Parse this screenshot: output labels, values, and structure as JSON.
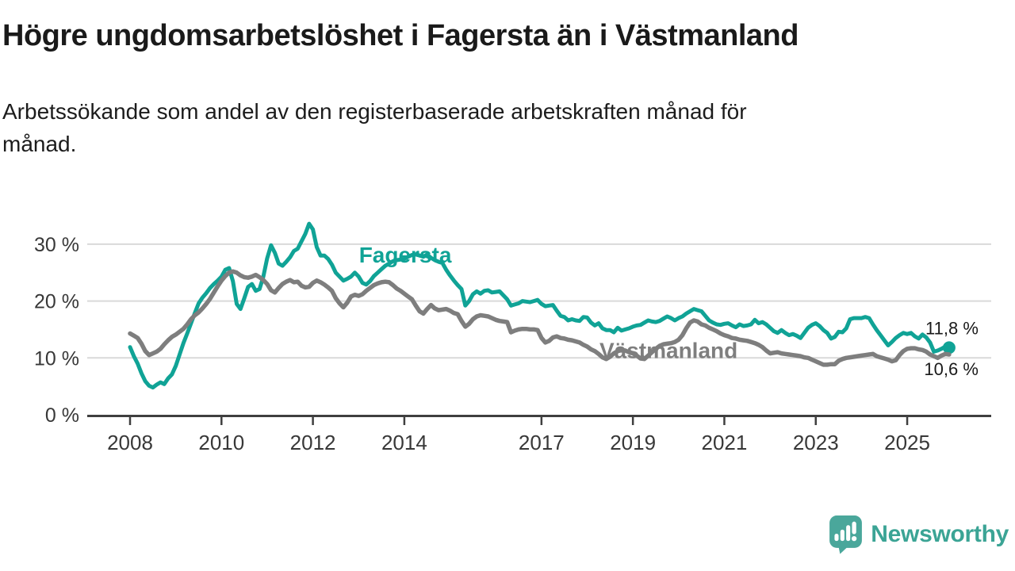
{
  "title": "Högre ungdomsarbetslöshet i Fagersta än i Västmanland",
  "subtitle": {
    "line1": "Arbetssökande som andel av den registerbaserade arbetskraften månad för",
    "line2": "månad."
  },
  "branding": {
    "logo_text": "Newsworthy",
    "logo_icon": "newsworthy-speech-bubble-bar-chart-icon",
    "logo_color": "#4aa79b"
  },
  "colors": {
    "fagersta_line": "#10a396",
    "vastmanland_line": "#7e7e7e",
    "axis": "#3f3f3f",
    "grid": "#d9d9d9",
    "tick_text": "#383838",
    "annotation_text": "#1a1a1a"
  },
  "chart_data": {
    "type": "line",
    "title": "Högre ungdomsarbetslöshet i Fagersta än i Västmanland",
    "subtitle": "Arbetssökande som andel av den registerbaserade arbetskraften månad för månad.",
    "x_unit": "year-month",
    "x_start_year": 2008,
    "x_step_months": 1,
    "x_ticks": [
      "2008",
      "2010",
      "2012",
      "2014",
      "2017",
      "2019",
      "2021",
      "2023",
      "2025"
    ],
    "x_tick_years": [
      2008,
      2010,
      2012,
      2014,
      2017,
      2019,
      2021,
      2023,
      2025
    ],
    "xlim": [
      2007.1,
      2026.85
    ],
    "ylim": [
      0,
      35
    ],
    "y_ticks": [
      {
        "value": 0,
        "label": "0 %"
      },
      {
        "value": 10,
        "label": "10 %"
      },
      {
        "value": 20,
        "label": "20 %"
      },
      {
        "value": 30,
        "label": "30 %"
      }
    ],
    "grid": true,
    "legend_position": "inline-labels",
    "series": [
      {
        "name": "Fagersta",
        "color": "#10a396",
        "stroke_width": 5,
        "label_pos": {
          "year": 2014.02,
          "value": 28.0
        },
        "end_dot": true,
        "end_label": "11,8 %",
        "end_label_dy": -17,
        "end_value": 11.8,
        "values": [
          11.9,
          10.3,
          9.0,
          7.3,
          5.9,
          5.1,
          4.8,
          5.3,
          5.7,
          5.4,
          6.4,
          7.1,
          8.6,
          10.6,
          12.6,
          14.3,
          16.1,
          17.9,
          19.6,
          20.6,
          21.4,
          22.3,
          23.0,
          23.6,
          24.3,
          25.5,
          25.8,
          23.5,
          19.5,
          18.6,
          20.5,
          22.5,
          23.0,
          21.8,
          22.1,
          24.3,
          27.5,
          29.8,
          28.5,
          26.6,
          26.2,
          26.9,
          27.7,
          28.8,
          29.2,
          30.5,
          31.8,
          33.6,
          32.6,
          29.5,
          28.0,
          28.0,
          27.4,
          26.4,
          25.0,
          24.3,
          23.6,
          23.9,
          24.3,
          25.0,
          24.3,
          23.2,
          22.9,
          23.5,
          24.4,
          25.0,
          25.6,
          26.2,
          26.6,
          27.0,
          27.2,
          27.3,
          27.4,
          27.8,
          28.1,
          28.2,
          28.0,
          27.8,
          28.2,
          27.6,
          27.2,
          26.9,
          26.7,
          25.5,
          24.5,
          23.6,
          22.8,
          22.1,
          19.2,
          20.0,
          21.2,
          21.7,
          21.3,
          21.8,
          21.9,
          21.5,
          21.6,
          21.7,
          21.0,
          20.3,
          19.2,
          19.4,
          19.6,
          20.0,
          19.9,
          19.8,
          20.0,
          20.2,
          19.5,
          19.1,
          19.2,
          19.3,
          18.3,
          17.4,
          17.2,
          16.6,
          16.8,
          16.6,
          16.5,
          17.2,
          17.1,
          16.2,
          15.7,
          16.1,
          15.2,
          14.9,
          14.9,
          14.5,
          15.3,
          14.8,
          15.0,
          15.2,
          15.5,
          15.7,
          15.8,
          16.2,
          16.6,
          16.4,
          16.3,
          16.5,
          16.9,
          17.3,
          17.0,
          16.6,
          17.0,
          17.3,
          17.8,
          18.2,
          18.6,
          18.4,
          18.2,
          17.4,
          16.6,
          16.2,
          15.9,
          15.8,
          16.0,
          16.1,
          15.7,
          15.4,
          15.9,
          15.6,
          15.7,
          15.9,
          16.7,
          16.1,
          16.3,
          15.9,
          15.3,
          14.7,
          14.4,
          14.9,
          14.4,
          14.0,
          14.2,
          13.9,
          13.5,
          14.4,
          15.3,
          15.8,
          16.1,
          15.6,
          14.9,
          14.4,
          13.4,
          13.7,
          14.6,
          14.5,
          15.2,
          16.8,
          17.0,
          17.0,
          17.0,
          17.2,
          17.0,
          15.9,
          14.9,
          14.0,
          13.1,
          12.2,
          12.8,
          13.5,
          14.0,
          14.4,
          14.2,
          14.4,
          13.8,
          13.4,
          14.1,
          13.6,
          12.7,
          11.1,
          11.3,
          11.6,
          12.0,
          11.8
        ]
      },
      {
        "name": "Västmanland",
        "color": "#7e7e7e",
        "stroke_width": 5.5,
        "label_pos": {
          "year": 2019.78,
          "value": 11.2
        },
        "end_dot": false,
        "end_label": "10,6 %",
        "end_label_dy": 26,
        "end_value": 10.6,
        "values": [
          14.3,
          13.9,
          13.5,
          12.5,
          11.2,
          10.5,
          10.8,
          11.1,
          11.6,
          12.4,
          13.1,
          13.7,
          14.1,
          14.6,
          15.1,
          15.9,
          16.8,
          17.5,
          18.0,
          18.7,
          19.5,
          20.4,
          21.5,
          22.6,
          23.6,
          24.4,
          25.0,
          25.2,
          25.0,
          24.5,
          24.2,
          24.1,
          24.3,
          24.6,
          24.2,
          23.7,
          23.0,
          21.9,
          21.5,
          22.3,
          23.0,
          23.4,
          23.7,
          23.3,
          23.4,
          22.7,
          22.4,
          22.5,
          23.2,
          23.6,
          23.3,
          22.9,
          22.4,
          21.8,
          20.5,
          19.6,
          18.9,
          19.7,
          20.8,
          21.1,
          20.9,
          21.2,
          21.8,
          22.3,
          22.8,
          23.1,
          23.3,
          23.4,
          23.3,
          22.8,
          22.2,
          21.8,
          21.3,
          20.8,
          20.3,
          19.2,
          18.2,
          17.8,
          18.6,
          19.3,
          18.7,
          18.4,
          18.5,
          18.6,
          18.3,
          17.9,
          17.7,
          16.5,
          15.5,
          16.0,
          16.8,
          17.3,
          17.5,
          17.4,
          17.3,
          17.0,
          16.7,
          16.5,
          16.4,
          16.3,
          14.5,
          14.8,
          15.0,
          15.1,
          15.1,
          15.0,
          15.0,
          14.9,
          13.5,
          12.7,
          13.0,
          13.6,
          13.8,
          13.5,
          13.4,
          13.2,
          13.1,
          12.9,
          12.7,
          12.3,
          12.0,
          11.5,
          11.2,
          10.7,
          10.1,
          9.8,
          10.2,
          10.8,
          11.2,
          11.4,
          11.3,
          11.0,
          10.8,
          10.4,
          9.9,
          9.8,
          10.4,
          11.0,
          11.6,
          12.1,
          12.4,
          12.5,
          12.6,
          12.8,
          13.2,
          14.0,
          15.2,
          16.2,
          16.6,
          16.4,
          15.9,
          15.7,
          15.3,
          15.0,
          14.7,
          14.3,
          14.0,
          13.8,
          13.5,
          13.4,
          13.2,
          13.1,
          13.0,
          12.8,
          12.6,
          12.3,
          11.9,
          11.3,
          10.8,
          10.9,
          11.0,
          10.8,
          10.7,
          10.6,
          10.5,
          10.4,
          10.3,
          10.1,
          10.0,
          9.7,
          9.4,
          9.1,
          8.8,
          8.8,
          8.9,
          8.9,
          9.5,
          9.8,
          10.0,
          10.1,
          10.2,
          10.3,
          10.4,
          10.5,
          10.6,
          10.7,
          10.3,
          10.1,
          9.9,
          9.7,
          9.4,
          9.6,
          10.5,
          11.2,
          11.6,
          11.7,
          11.7,
          11.5,
          11.4,
          11.1,
          10.6,
          10.3,
          10.0,
          10.4,
          10.7,
          10.6
        ]
      }
    ]
  }
}
